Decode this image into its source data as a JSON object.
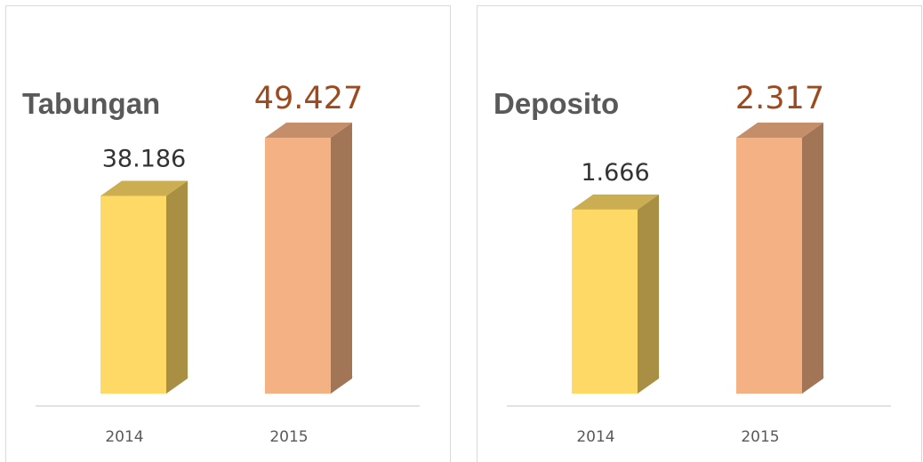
{
  "chart_data": [
    {
      "type": "bar",
      "title": "Tabungan",
      "categories": [
        "2014",
        "2015"
      ],
      "values": [
        38186,
        49427
      ],
      "value_labels": [
        "38.186",
        "49.427"
      ],
      "colors": [
        "#ffd966",
        "#f4b183"
      ]
    },
    {
      "type": "bar",
      "title": "Deposito",
      "categories": [
        "2014",
        "2015"
      ],
      "values": [
        1666,
        2317
      ],
      "value_labels": [
        "1.666",
        "2.317"
      ],
      "colors": [
        "#ffd966",
        "#f4b183"
      ]
    }
  ]
}
